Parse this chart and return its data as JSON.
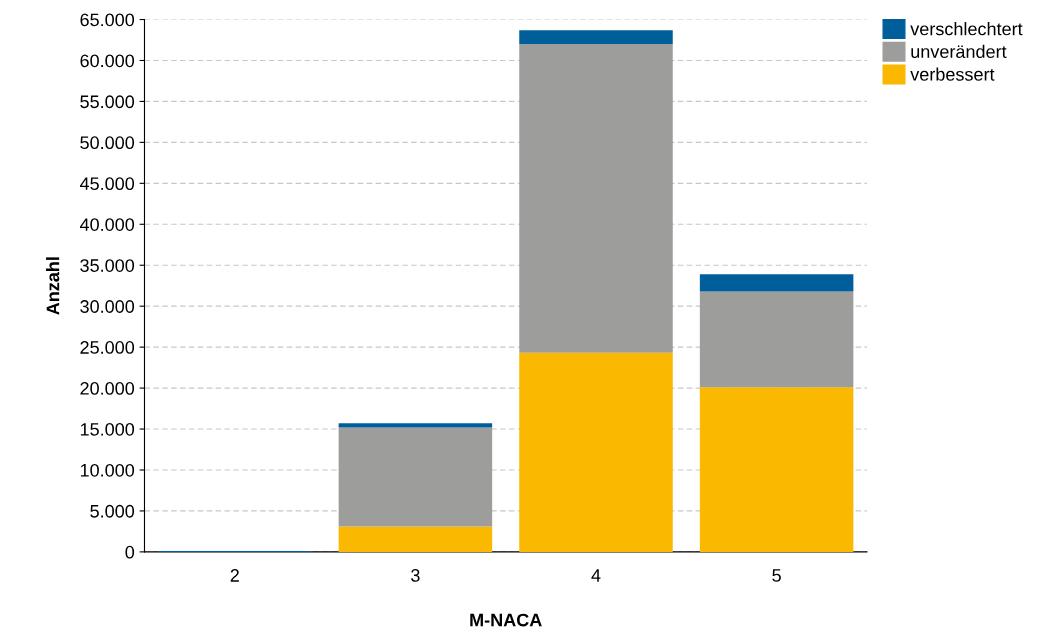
{
  "chart_data": {
    "type": "bar",
    "stacked": true,
    "xlabel": "M-NACA",
    "ylabel": "Anzahl",
    "categories": [
      "2",
      "3",
      "4",
      "5"
    ],
    "series": [
      {
        "name": "verbessert",
        "color": "#fab800",
        "values": [
          null,
          3100,
          24300,
          20100
        ]
      },
      {
        "name": "unverändert",
        "color": "#9d9d9c",
        "values": [
          null,
          12100,
          37700,
          11700
        ]
      },
      {
        "name": "verschlechtert",
        "color": "#005f9b",
        "values": [
          100,
          500,
          1700,
          2100
        ]
      }
    ],
    "ylim": [
      0,
      65000
    ],
    "yticks": [
      {
        "value": 0,
        "label": "0"
      },
      {
        "value": 5000,
        "label": "5.000"
      },
      {
        "value": 10000,
        "label": "10.000"
      },
      {
        "value": 15000,
        "label": "15.000"
      },
      {
        "value": 20000,
        "label": "20.000"
      },
      {
        "value": 25000,
        "label": "25.000"
      },
      {
        "value": 30000,
        "label": "30.000"
      },
      {
        "value": 35000,
        "label": "35.000"
      },
      {
        "value": 40000,
        "label": "40.000"
      },
      {
        "value": 45000,
        "label": "45.000"
      },
      {
        "value": 50000,
        "label": "50.000"
      },
      {
        "value": 55000,
        "label": "55.000"
      },
      {
        "value": 60000,
        "label": "60.000"
      },
      {
        "value": 65000,
        "label": "65.000"
      }
    ],
    "grid": "y",
    "legend": "top right"
  }
}
